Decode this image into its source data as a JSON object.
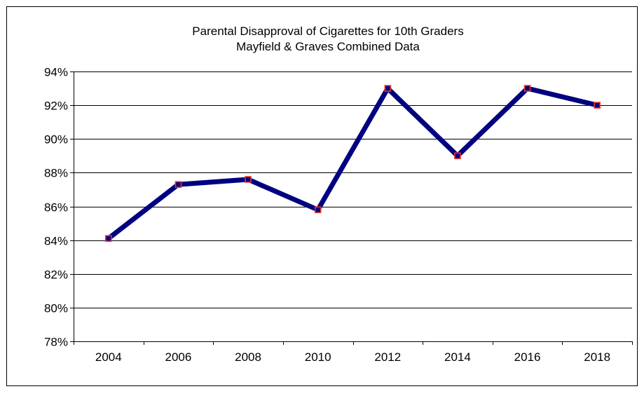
{
  "chart_data": {
    "type": "line",
    "title": "Parental Disapproval of Cigarettes for 10th Graders",
    "subtitle": "Mayfield & Graves Combined Data",
    "xlabel": "",
    "ylabel": "",
    "categories": [
      "2004",
      "2006",
      "2008",
      "2010",
      "2012",
      "2014",
      "2016",
      "2018"
    ],
    "series": [
      {
        "values": [
          84.1,
          87.3,
          87.6,
          85.8,
          93.0,
          89.0,
          93.0,
          92.0
        ]
      }
    ],
    "ylim": [
      78,
      94
    ],
    "yticks": [
      78,
      80,
      82,
      84,
      86,
      88,
      90,
      92,
      94
    ],
    "ytick_labels": [
      "78%",
      "80%",
      "82%",
      "84%",
      "86%",
      "88%",
      "90%",
      "92%",
      "94%"
    ],
    "grid": true,
    "legend": "none",
    "colors": {
      "line": "#000080",
      "marker_fill": "#000080",
      "marker_edge": "#e8342c",
      "grid": "#000000",
      "frame": "#000000"
    }
  }
}
